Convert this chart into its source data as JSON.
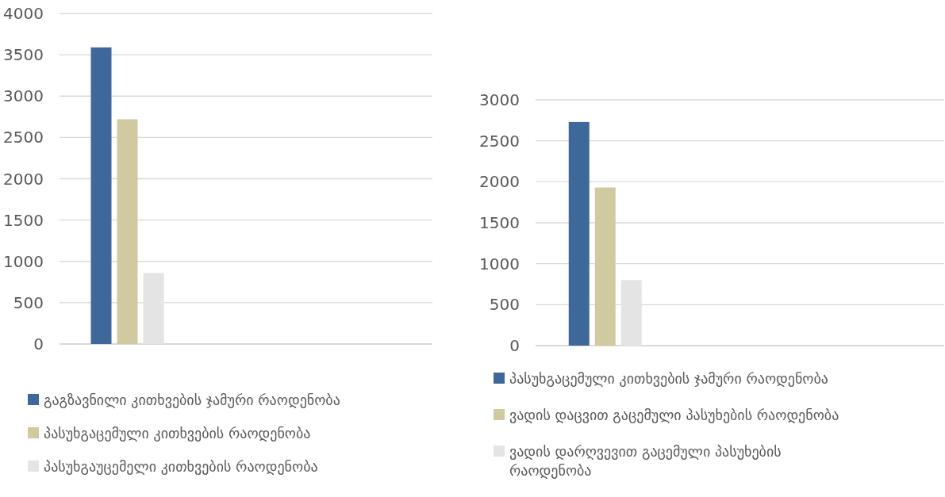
{
  "chart_data": [
    {
      "type": "bar",
      "categories": [
        null
      ],
      "ylim": [
        0,
        4000
      ],
      "yticks": [
        0,
        500,
        1000,
        1500,
        2000,
        2500,
        3000,
        3500,
        4000
      ],
      "grid": "y",
      "legend": "bottom",
      "series": [
        {
          "name": "გაგზავნილი კითხვების ჯამური რაოდენობა",
          "color": "#3e6899",
          "values": [
            3590
          ]
        },
        {
          "name": "პასუხგაცემული კითხვების რაოდენობა",
          "color": "#d1c9a0",
          "values": [
            2720
          ]
        },
        {
          "name": "პასუხგაუცემელი კითხვების რაოდენობა",
          "color": "#e4e4e4",
          "values": [
            860
          ]
        }
      ]
    },
    {
      "type": "bar",
      "categories": [
        null
      ],
      "ylim": [
        0,
        3000
      ],
      "yticks": [
        0,
        500,
        1000,
        1500,
        2000,
        2500,
        3000
      ],
      "grid": "y",
      "legend": "bottom",
      "series": [
        {
          "name": "პასუხგაცემული კითხვების ჯამური რაოდენობა",
          "color": "#3e6899",
          "values": [
            2730
          ]
        },
        {
          "name": "ვადის დაცვით გაცემული პასუხების რაოდენობა",
          "color": "#d1c9a0",
          "values": [
            1930
          ]
        },
        {
          "name": "ვადის დარღვევით გაცემული პასუხების რაოდენობა",
          "color": "#e4e4e4",
          "values": [
            800
          ]
        }
      ]
    }
  ]
}
